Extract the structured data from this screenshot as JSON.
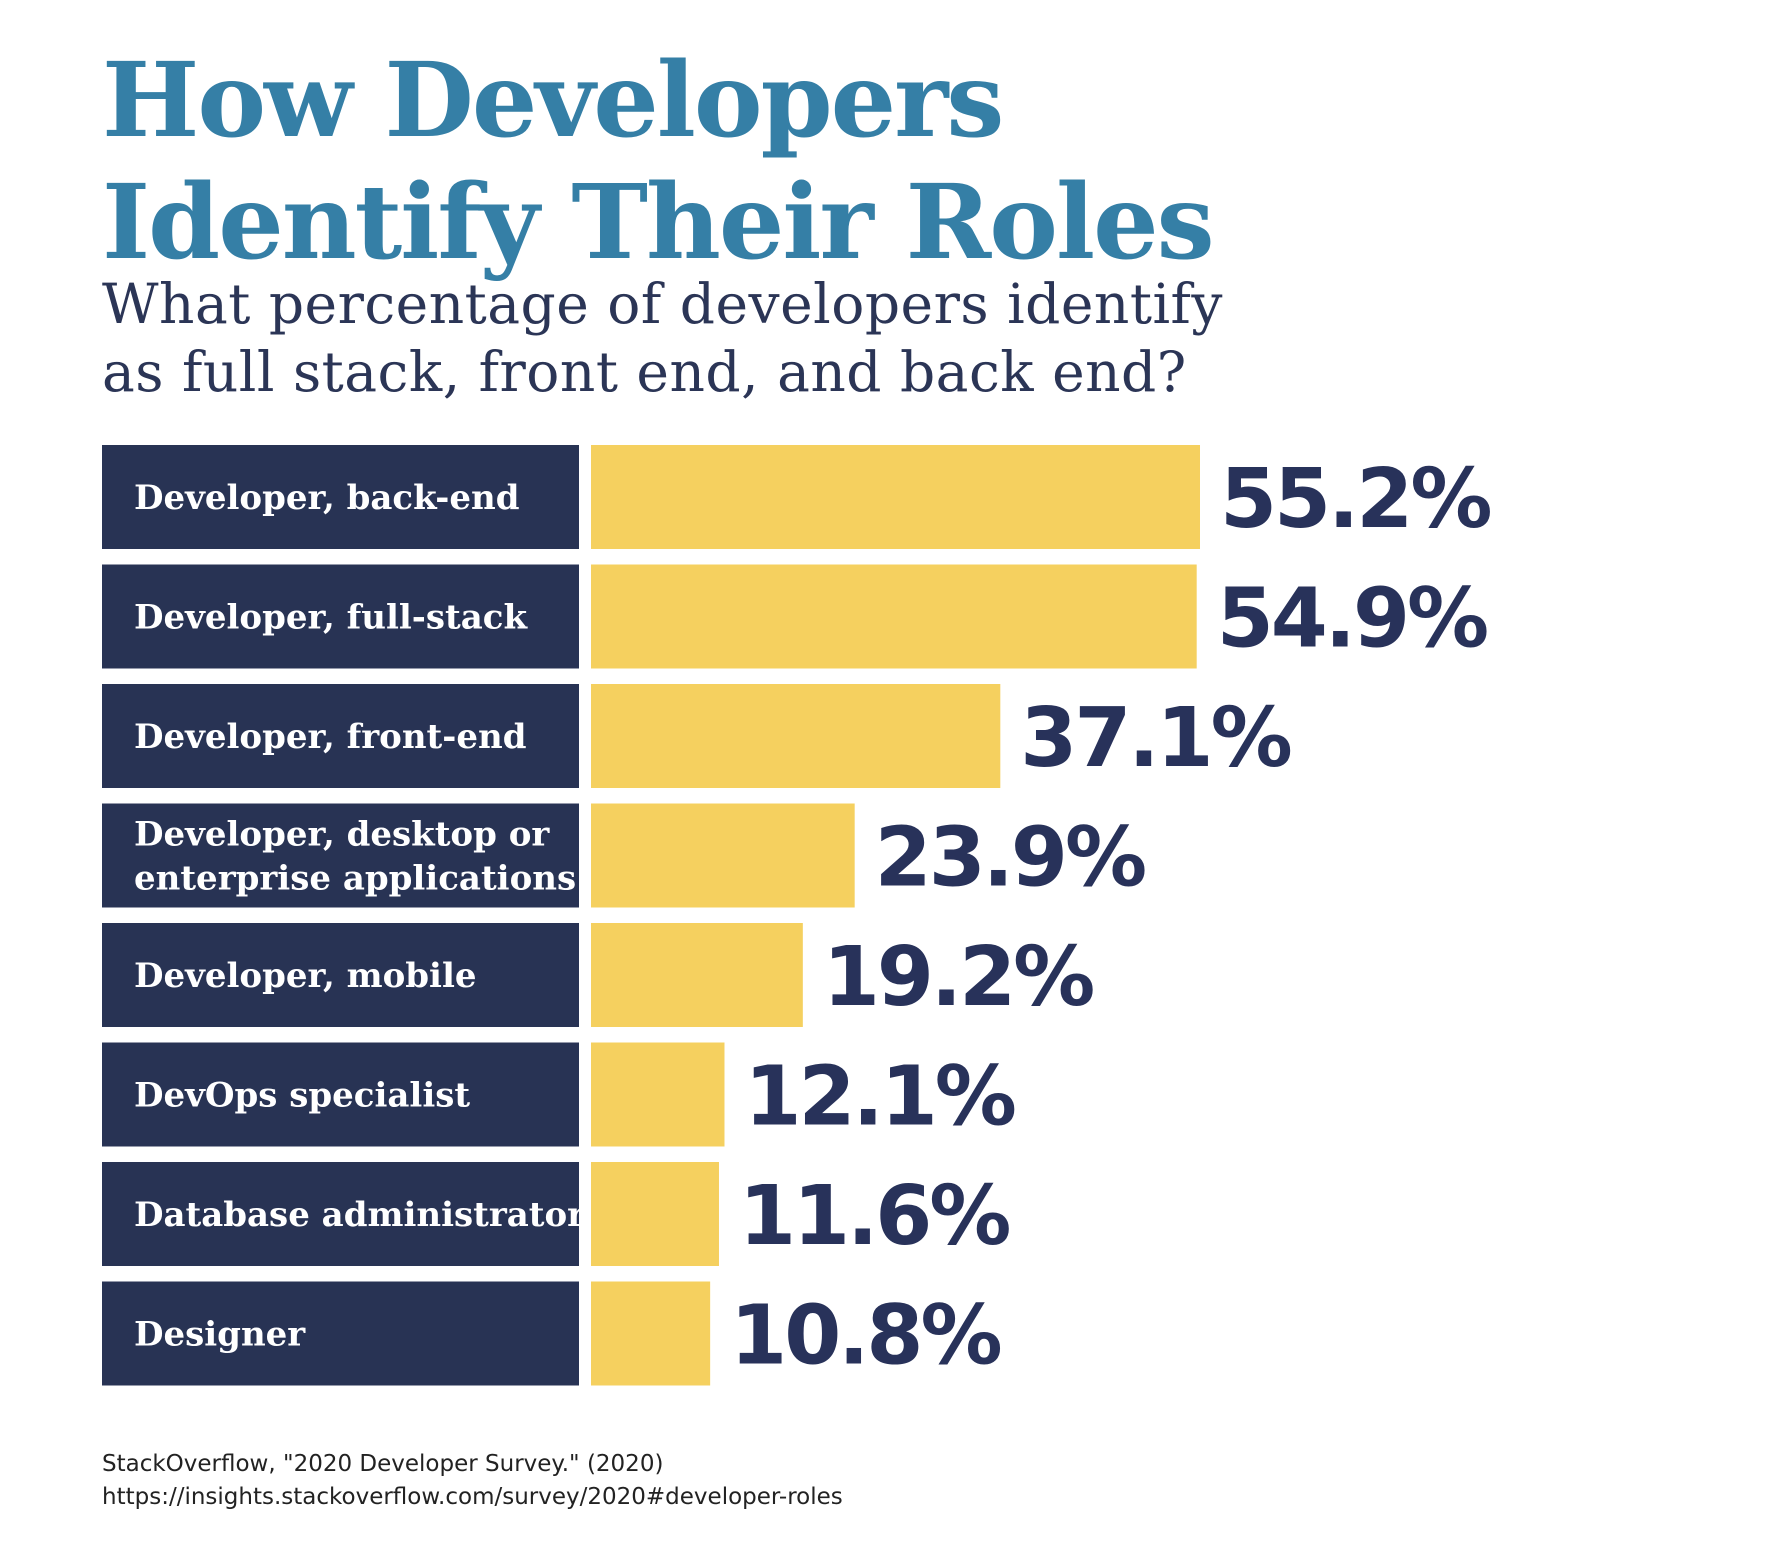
{
  "header": {
    "title_lines": [
      "How Developers",
      "Identify Their Roles"
    ],
    "subtitle_lines": [
      "What percentage of developers identify",
      "as full stack, front end, and back end?"
    ]
  },
  "colors": {
    "title": "#357fa6",
    "subtitle": "#2b3556",
    "label_box": "#283354",
    "bar": "#f5d05f",
    "value_text": "#28325a"
  },
  "chart_data": {
    "type": "bar",
    "orientation": "horizontal",
    "categories": [
      [
        "Developer, back-end"
      ],
      [
        "Developer, full-stack"
      ],
      [
        "Developer, front-end"
      ],
      [
        "Developer, desktop or",
        "enterprise applications"
      ],
      [
        "Developer, mobile"
      ],
      [
        "DevOps specialist"
      ],
      [
        "Database administrator"
      ],
      [
        "Designer"
      ]
    ],
    "values": [
      55.2,
      54.9,
      37.1,
      23.9,
      19.2,
      12.1,
      11.6,
      10.8
    ],
    "value_labels": [
      "55.2%",
      "54.9%",
      "37.1%",
      "23.9%",
      "19.2%",
      "12.1%",
      "11.6%",
      "10.8%"
    ],
    "unit": "%",
    "title": "How Developers Identify Their Roles",
    "subtitle": "What percentage of developers identify as full stack, front end, and back end?",
    "xlabel": "",
    "ylabel": "",
    "grid": false,
    "legend": "none"
  },
  "source": {
    "lines": [
      "StackOverflow, \"2020 Developer Survey.\" (2020)",
      "https://insights.stackoverflow.com/survey/2020#developer-roles"
    ]
  }
}
